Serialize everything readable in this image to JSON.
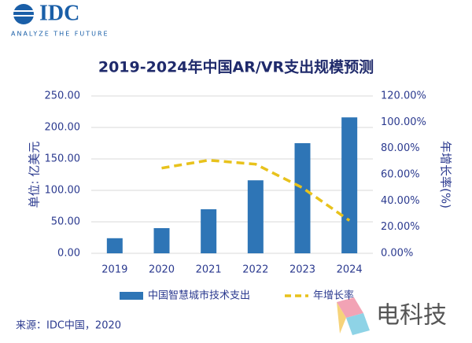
{
  "logo": {
    "name": "IDC",
    "tagline": "ANALYZE THE FUTURE"
  },
  "source": "来源：IDC中国，2020",
  "watermark": "电科技",
  "chart_data": {
    "type": "bar-line",
    "title": "2019-2024年中国AR/VR支出规模预测",
    "y_label": "单位: 亿美元",
    "y2_label": "年增长率(%)",
    "categories": [
      "2019",
      "2020",
      "2021",
      "2022",
      "2023",
      "2024"
    ],
    "series": [
      {
        "name": "中国智慧城市技术支出",
        "color": "#2e75b6",
        "type": "bar",
        "values": [
          24,
          40,
          70,
          116,
          175,
          216
        ]
      },
      {
        "name": "年增长率",
        "color": "#e8c21c",
        "type": "line",
        "axis": "y2",
        "values": [
          null,
          65,
          71,
          68,
          50,
          25
        ]
      }
    ],
    "ylim": [
      0,
      250
    ],
    "yticks": [
      {
        "value": 0,
        "label": "0.00"
      },
      {
        "value": 50,
        "label": "50.00"
      },
      {
        "value": 100,
        "label": "100.00"
      },
      {
        "value": 150,
        "label": "150.00"
      },
      {
        "value": 200,
        "label": "200.00"
      },
      {
        "value": 250,
        "label": "250.00"
      }
    ],
    "y2lim": [
      0,
      120
    ],
    "y2ticks": [
      {
        "value": 0,
        "label": "0.00%"
      },
      {
        "value": 20,
        "label": "20.00%"
      },
      {
        "value": 40,
        "label": "40.00%"
      },
      {
        "value": 60,
        "label": "60.00%"
      },
      {
        "value": 80,
        "label": "80.00%"
      },
      {
        "value": 100,
        "label": "100.00%"
      },
      {
        "value": 120,
        "label": "120.00%"
      }
    ],
    "grid": true
  }
}
